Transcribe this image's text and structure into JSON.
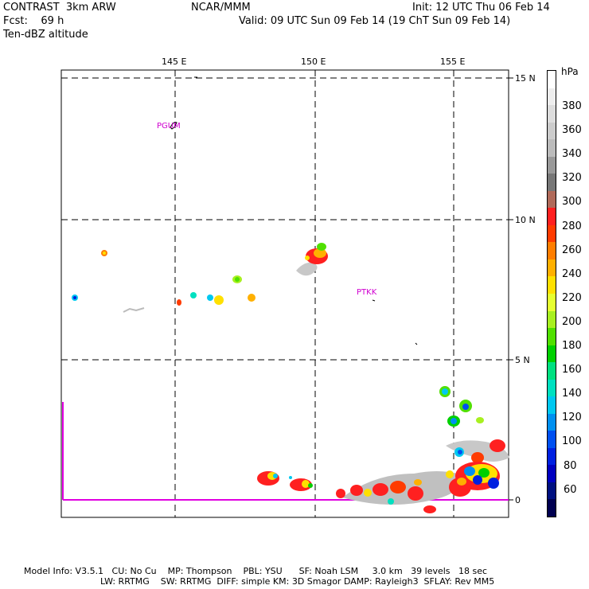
{
  "header": {
    "left_line1": "CONTRAST  3km ARW",
    "left_line2": "Fcst:    69 h",
    "left_line3": "Ten-dBZ altitude",
    "center_line1": "NCAR/MMM",
    "right_line1": "Init: 12 UTC Thu 06 Feb 14",
    "right_line2": "Valid: 09 UTC Sun 09 Feb 14 (19 ChT Sun 09 Feb 14)"
  },
  "map": {
    "lon_labels": [
      "145 E",
      "150 E",
      "155 E"
    ],
    "lat_labels": [
      "15 N",
      "10 N",
      "5 N",
      "0"
    ],
    "stations": [
      "PGUM",
      "PTKK"
    ]
  },
  "legend": {
    "unit": "hPa",
    "labels": [
      "380",
      "360",
      "340",
      "320",
      "300",
      "280",
      "260",
      "240",
      "220",
      "200",
      "180",
      "160",
      "140",
      "120",
      "100",
      "80",
      "60"
    ],
    "colors": [
      "#ffffff",
      "#eeeeee",
      "#dddddd",
      "#cccccc",
      "#bbbbbb",
      "#999999",
      "#777777",
      "#b06a5a",
      "#ff2020",
      "#ff3b00",
      "#ff7e00",
      "#ffb000",
      "#ffe000",
      "#e6ff30",
      "#a8f020",
      "#50e000",
      "#00d000",
      "#00e080",
      "#00e0c0",
      "#00c8f0",
      "#0090f0",
      "#0050f0",
      "#0020e0",
      "#0000c0",
      "#001080",
      "#000050"
    ]
  },
  "footer": {
    "line1": "Model Info: V3.5.1   CU: No Cu    MP: Thompson    PBL: YSU      SF: Noah LSM     3.0 km   39 levels   18 sec",
    "line2": "LW: RRTMG    SW: RRTMG  DIFF: simple KM: 3D Smagor DAMP: Rayleigh3  SFLAY: Rev MM5"
  }
}
